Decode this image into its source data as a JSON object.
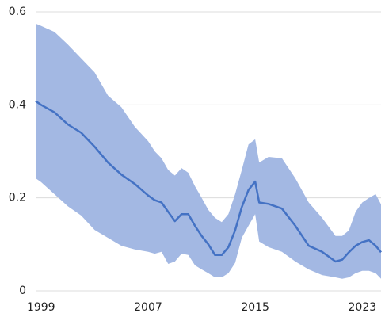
{
  "chart_data": {
    "type": "line",
    "x": [
      1998.6,
      1999,
      2000,
      2001,
      2002,
      2003,
      2004,
      2005,
      2006,
      2007,
      2007.5,
      2008,
      2008.5,
      2009,
      2009.5,
      2010,
      2010.5,
      2011,
      2011.5,
      2012,
      2012.5,
      2013,
      2013.5,
      2014,
      2014.5,
      2015,
      2015.3,
      2016,
      2017,
      2018,
      2019,
      2020,
      2021,
      2021.5,
      2022,
      2022.5,
      2023,
      2023.5,
      2024,
      2024.4
    ],
    "series": [
      {
        "color": "#4472c4",
        "values": [
          0.408,
          0.4,
          0.384,
          0.358,
          0.34,
          0.31,
          0.276,
          0.25,
          0.23,
          0.205,
          0.195,
          0.19,
          0.17,
          0.15,
          0.165,
          0.165,
          0.14,
          0.118,
          0.1,
          0.077,
          0.077,
          0.094,
          0.13,
          0.18,
          0.217,
          0.235,
          0.19,
          0.187,
          0.177,
          0.14,
          0.097,
          0.084,
          0.063,
          0.067,
          0.083,
          0.097,
          0.105,
          0.109,
          0.097,
          0.083
        ]
      }
    ],
    "band": {
      "color": "#a3b8e3",
      "upper": [
        0.575,
        0.57,
        0.557,
        0.53,
        0.5,
        0.47,
        0.42,
        0.395,
        0.353,
        0.322,
        0.3,
        0.285,
        0.26,
        0.248,
        0.264,
        0.254,
        0.225,
        0.2,
        0.174,
        0.157,
        0.148,
        0.165,
        0.208,
        0.26,
        0.315,
        0.326,
        0.276,
        0.288,
        0.285,
        0.242,
        0.19,
        0.157,
        0.118,
        0.118,
        0.13,
        0.17,
        0.19,
        0.2,
        0.208,
        0.186
      ],
      "lower": [
        0.242,
        0.234,
        0.208,
        0.182,
        0.162,
        0.131,
        0.114,
        0.097,
        0.089,
        0.084,
        0.08,
        0.084,
        0.058,
        0.063,
        0.08,
        0.077,
        0.055,
        0.046,
        0.038,
        0.029,
        0.029,
        0.038,
        0.06,
        0.114,
        0.14,
        0.165,
        0.106,
        0.094,
        0.084,
        0.063,
        0.046,
        0.034,
        0.029,
        0.026,
        0.029,
        0.038,
        0.043,
        0.043,
        0.038,
        0.026
      ]
    },
    "xlim": [
      1998.6,
      2024.4
    ],
    "xticks": [
      1999,
      2007,
      2015,
      2023
    ],
    "ylim": [
      0,
      0.6
    ],
    "yticks": [
      0,
      0.2,
      0.4,
      0.6
    ],
    "grid": true
  }
}
